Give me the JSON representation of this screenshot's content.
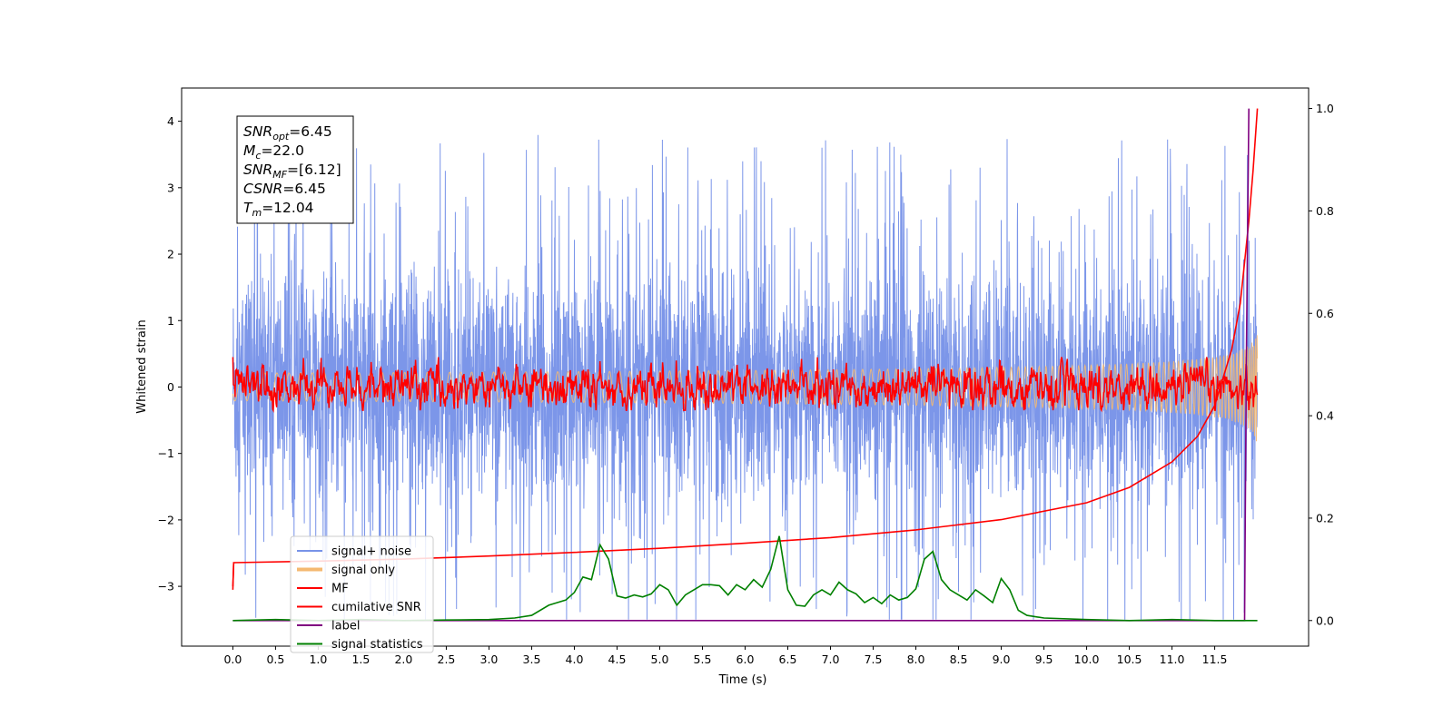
{
  "chart_data": {
    "type": "line",
    "title": "",
    "xlabel": "Time (s)",
    "ylabel_left": "Whitened strain",
    "ylabel_right": "",
    "xlim": [
      -0.6,
      12.6
    ],
    "ylim_left": [
      -3.9,
      4.5
    ],
    "ylim_right": [
      -0.05,
      1.04
    ],
    "x_ticks": [
      "0.0",
      "0.5",
      "1.0",
      "1.5",
      "2.0",
      "2.5",
      "3.0",
      "3.5",
      "4.0",
      "4.5",
      "5.0",
      "5.5",
      "6.0",
      "6.5",
      "7.0",
      "7.5",
      "8.0",
      "8.5",
      "9.0",
      "9.5",
      "10.0",
      "10.5",
      "11.0",
      "11.5"
    ],
    "y_left_ticks": [
      "4",
      "3",
      "2",
      "1",
      "0",
      "−1",
      "−2",
      "−3"
    ],
    "y_right_ticks": [
      "1.0",
      "0.8",
      "0.6",
      "0.4",
      "0.2",
      "0.0"
    ],
    "grid": false,
    "legend_position": "lower-left",
    "series": [
      {
        "name": "signal+ noise",
        "axis": "left",
        "color": "#7893e8",
        "x_range": [
          0,
          12.0
        ],
        "description_values": {
          "center": 0.0,
          "typical_amplitude": 1.2,
          "max": 4.2,
          "min": -3.5
        }
      },
      {
        "name": "signal only",
        "axis": "left",
        "color": "#f5b971",
        "x_range": [
          0,
          12.0
        ],
        "description_values": {
          "center": 0.0,
          "end_amplitude": 0.6
        }
      },
      {
        "name": "MF",
        "axis": "left",
        "color": "#ff0000",
        "x_range": [
          0,
          12.0
        ],
        "description_values": {
          "center": 0.0,
          "typical_amplitude": 0.3,
          "start": 1.0
        }
      },
      {
        "name": "cumilative SNR",
        "axis": "right",
        "x": [
          0.0,
          0.01,
          1.0,
          2.0,
          3.0,
          4.0,
          5.0,
          6.0,
          7.0,
          8.0,
          9.0,
          10.0,
          10.5,
          11.0,
          11.3,
          11.5,
          11.7,
          11.8,
          11.9,
          11.95,
          12.0
        ],
        "values": [
          0.06,
          0.113,
          0.116,
          0.12,
          0.126,
          0.133,
          0.141,
          0.151,
          0.162,
          0.177,
          0.197,
          0.23,
          0.26,
          0.31,
          0.36,
          0.42,
          0.53,
          0.62,
          0.78,
          0.88,
          1.0
        ],
        "color": "#ff0000"
      },
      {
        "name": "label",
        "axis": "right",
        "x": [
          0.0,
          11.85,
          11.87,
          11.9
        ],
        "values": [
          0.0,
          0.0,
          0.5,
          1.0
        ],
        "color": "#800080"
      },
      {
        "name": "signal statistics",
        "axis": "right",
        "x": [
          0.0,
          0.5,
          1.0,
          1.5,
          2.0,
          2.5,
          3.0,
          3.3,
          3.5,
          3.7,
          3.8,
          3.9,
          4.0,
          4.1,
          4.2,
          4.3,
          4.4,
          4.5,
          4.6,
          4.7,
          4.8,
          4.9,
          5.0,
          5.1,
          5.2,
          5.3,
          5.4,
          5.5,
          5.6,
          5.7,
          5.8,
          5.9,
          6.0,
          6.1,
          6.2,
          6.3,
          6.4,
          6.5,
          6.6,
          6.7,
          6.8,
          6.9,
          7.0,
          7.1,
          7.2,
          7.3,
          7.4,
          7.5,
          7.6,
          7.7,
          7.8,
          7.9,
          8.0,
          8.1,
          8.2,
          8.3,
          8.4,
          8.5,
          8.6,
          8.7,
          8.8,
          8.9,
          9.0,
          9.1,
          9.2,
          9.3,
          9.5,
          10.0,
          10.5,
          11.0,
          11.5,
          12.0
        ],
        "values": [
          0.0,
          0.002,
          0.0,
          0.002,
          0.0,
          0.001,
          0.002,
          0.005,
          0.01,
          0.03,
          0.035,
          0.04,
          0.055,
          0.085,
          0.08,
          0.148,
          0.12,
          0.048,
          0.044,
          0.05,
          0.046,
          0.052,
          0.07,
          0.06,
          0.03,
          0.05,
          0.06,
          0.07,
          0.07,
          0.068,
          0.05,
          0.07,
          0.06,
          0.08,
          0.065,
          0.1,
          0.165,
          0.06,
          0.03,
          0.028,
          0.05,
          0.06,
          0.05,
          0.075,
          0.06,
          0.052,
          0.035,
          0.045,
          0.033,
          0.05,
          0.04,
          0.045,
          0.062,
          0.12,
          0.135,
          0.08,
          0.06,
          0.05,
          0.04,
          0.06,
          0.048,
          0.035,
          0.082,
          0.06,
          0.02,
          0.01,
          0.005,
          0.002,
          0.0,
          0.002,
          0.0,
          0.0
        ],
        "color": "#008000"
      }
    ],
    "annotations": [
      {
        "math": "SNR",
        "sub": "opt",
        "value": "=6.45"
      },
      {
        "math": "M",
        "sub": "c",
        "value": "=22.0"
      },
      {
        "math": "SNR",
        "sub": "MF",
        "value": "=[6.12]"
      },
      {
        "math": "CSNR",
        "sub": "",
        "value": "=6.45"
      },
      {
        "math": "T",
        "sub": "m",
        "value": "=12.04"
      }
    ]
  }
}
